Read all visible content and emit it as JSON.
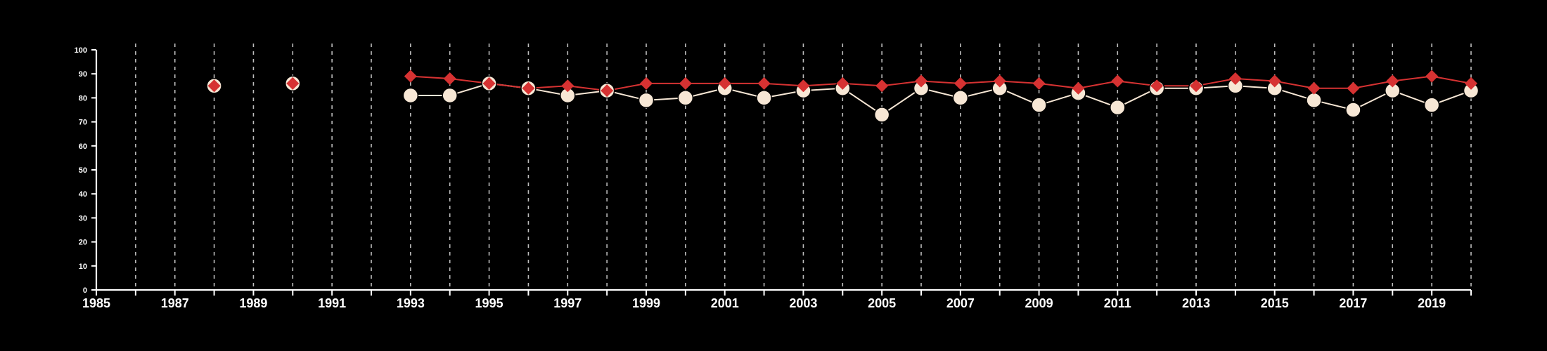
{
  "colors": {
    "background": "#000000",
    "axis": "#ffffff",
    "grid": "#bdbdbd",
    "series_a": "#f7e7d5",
    "series_b": "#d63232"
  },
  "chart_data": {
    "type": "line",
    "title": "",
    "xlabel": "",
    "ylabel": "",
    "xlim": [
      1985,
      2020
    ],
    "ylim": [
      0,
      100
    ],
    "x_ticks": [
      "1985",
      "1987",
      "1989",
      "1991",
      "1993",
      "1995",
      "1997",
      "1999",
      "2001",
      "2003",
      "2005",
      "2007",
      "2009",
      "2011",
      "2013",
      "2015",
      "2017",
      "2019"
    ],
    "y_ticks": [
      "0",
      "10",
      "20",
      "30",
      "40",
      "50",
      "60",
      "70",
      "80",
      "90",
      "100"
    ],
    "grid": "vertical dashed lines at every year",
    "legend": "none",
    "series": [
      {
        "marker": "circle",
        "color": "#f7e7d5",
        "points": [
          {
            "x": 1988,
            "y": 85
          },
          {
            "x": 1990,
            "y": 86
          },
          {
            "x": 1993,
            "y": 81
          },
          {
            "x": 1994,
            "y": 81
          },
          {
            "x": 1995,
            "y": 86
          },
          {
            "x": 1996,
            "y": 84
          },
          {
            "x": 1997,
            "y": 81
          },
          {
            "x": 1998,
            "y": 83
          },
          {
            "x": 1999,
            "y": 79
          },
          {
            "x": 2000,
            "y": 80
          },
          {
            "x": 2001,
            "y": 84
          },
          {
            "x": 2002,
            "y": 80
          },
          {
            "x": 2003,
            "y": 83
          },
          {
            "x": 2004,
            "y": 84
          },
          {
            "x": 2005,
            "y": 73
          },
          {
            "x": 2006,
            "y": 84
          },
          {
            "x": 2007,
            "y": 80
          },
          {
            "x": 2008,
            "y": 84
          },
          {
            "x": 2009,
            "y": 77
          },
          {
            "x": 2010,
            "y": 82
          },
          {
            "x": 2011,
            "y": 76
          },
          {
            "x": 2012,
            "y": 84
          },
          {
            "x": 2013,
            "y": 84
          },
          {
            "x": 2014,
            "y": 85
          },
          {
            "x": 2015,
            "y": 84
          },
          {
            "x": 2016,
            "y": 79
          },
          {
            "x": 2017,
            "y": 75
          },
          {
            "x": 2018,
            "y": 83
          },
          {
            "x": 2019,
            "y": 77
          },
          {
            "x": 2020,
            "y": 83
          }
        ]
      },
      {
        "marker": "diamond",
        "color": "#d63232",
        "points": [
          {
            "x": 1988,
            "y": 85
          },
          {
            "x": 1990,
            "y": 86
          },
          {
            "x": 1993,
            "y": 89
          },
          {
            "x": 1994,
            "y": 88
          },
          {
            "x": 1995,
            "y": 86
          },
          {
            "x": 1996,
            "y": 84
          },
          {
            "x": 1997,
            "y": 85
          },
          {
            "x": 1998,
            "y": 83
          },
          {
            "x": 1999,
            "y": 86
          },
          {
            "x": 2000,
            "y": 86
          },
          {
            "x": 2001,
            "y": 86
          },
          {
            "x": 2002,
            "y": 86
          },
          {
            "x": 2003,
            "y": 85
          },
          {
            "x": 2004,
            "y": 86
          },
          {
            "x": 2005,
            "y": 85
          },
          {
            "x": 2006,
            "y": 87
          },
          {
            "x": 2007,
            "y": 86
          },
          {
            "x": 2008,
            "y": 87
          },
          {
            "x": 2009,
            "y": 86
          },
          {
            "x": 2010,
            "y": 84
          },
          {
            "x": 2011,
            "y": 87
          },
          {
            "x": 2012,
            "y": 85
          },
          {
            "x": 2013,
            "y": 85
          },
          {
            "x": 2014,
            "y": 88
          },
          {
            "x": 2015,
            "y": 87
          },
          {
            "x": 2016,
            "y": 84
          },
          {
            "x": 2017,
            "y": 84
          },
          {
            "x": 2018,
            "y": 87
          },
          {
            "x": 2019,
            "y": 89
          },
          {
            "x": 2020,
            "y": 86
          }
        ]
      }
    ]
  }
}
